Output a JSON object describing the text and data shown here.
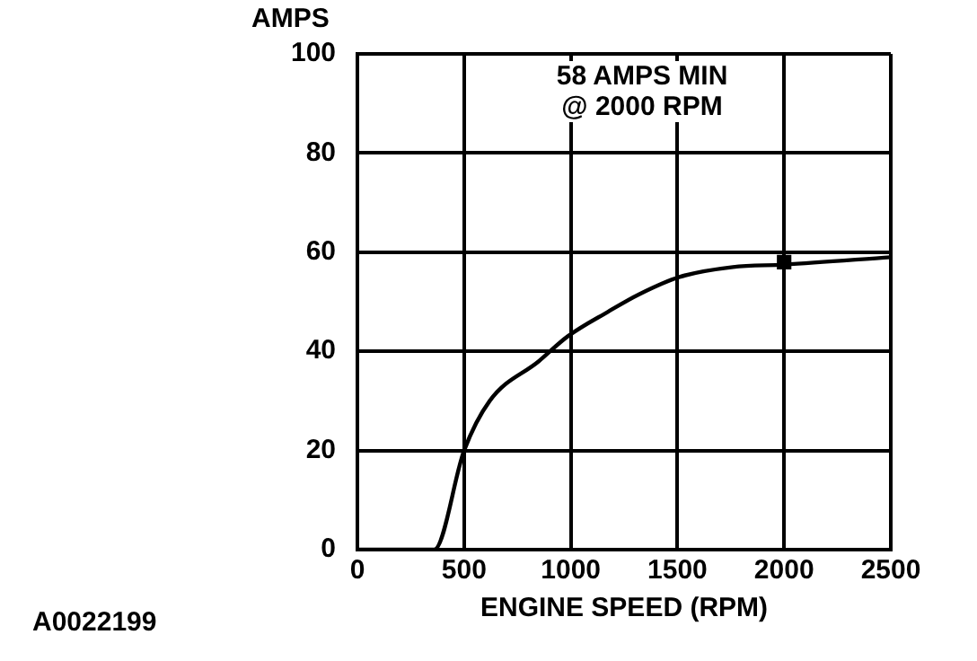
{
  "chart_data": {
    "type": "line",
    "xlabel": "ENGINE SPEED (RPM)",
    "ylabel": "AMPS",
    "annotations": [
      "58 AMPS MIN\n@ 2000 RPM",
      "A0022199"
    ],
    "series": [
      {
        "color": "#000000",
        "x": [
          0,
          360,
          500,
          620,
          850,
          985,
          1175,
          1320,
          1510,
          1760,
          2000,
          2500
        ],
        "values": [
          0,
          0,
          20,
          30,
          38,
          43,
          48,
          51.5,
          55,
          57,
          57.5,
          59
        ]
      },
      {
        "type": "scatter",
        "color": "#000000",
        "marker": "square",
        "x": [
          2000
        ],
        "values": [
          58
        ]
      }
    ],
    "xlim": [
      0,
      2500
    ],
    "xticks": [
      0,
      500,
      1000,
      1500,
      2000,
      2500
    ],
    "ylim": [
      0,
      100
    ],
    "yticks": [
      0,
      20,
      40,
      60,
      80,
      100
    ],
    "grid": true,
    "legend": false
  }
}
